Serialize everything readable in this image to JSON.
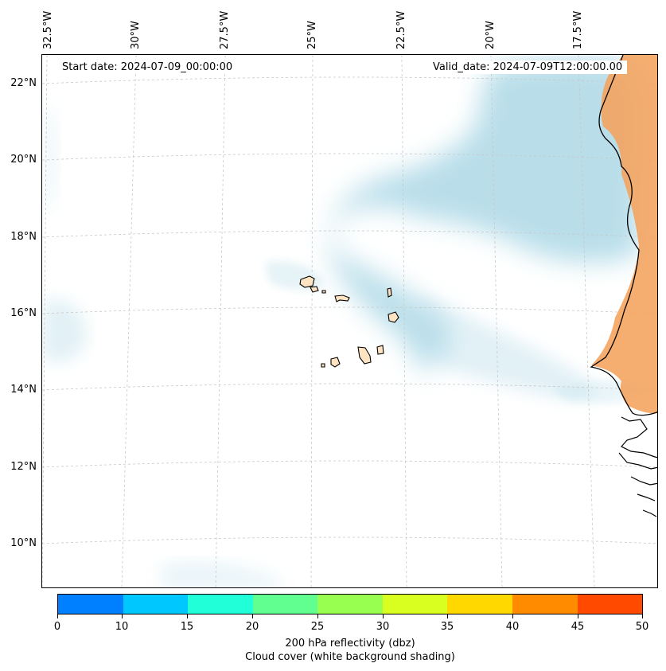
{
  "map": {
    "start_date": "Start date: 2024-07-09_00:00:00",
    "valid_date": "Valid_date: 2024-07-09T12:00:00.00",
    "longitude_labels": [
      "32.5°W",
      "30°W",
      "27.5°W",
      "25°W",
      "22.5°W",
      "20°W",
      "17.5°W"
    ],
    "latitude_labels": [
      "22°N",
      "20°N",
      "18°N",
      "16°N",
      "14°N",
      "12°N",
      "10°N"
    ],
    "land_color": "#f4a460",
    "cloud_color": "#add8e6",
    "island_color": "#ffe4c4"
  },
  "colorbar": {
    "ticks": [
      "0",
      "10",
      "15",
      "20",
      "25",
      "30",
      "35",
      "40",
      "45",
      "50"
    ],
    "colors": [
      "#0080ff",
      "#00c8ff",
      "#20ffd8",
      "#60ff90",
      "#98ff50",
      "#d8ff20",
      "#ffd800",
      "#ff8c00",
      "#ff4a00"
    ],
    "label": "200 hPa reflectivity (dbz)",
    "sublabel": "Cloud cover (white background shading)"
  }
}
